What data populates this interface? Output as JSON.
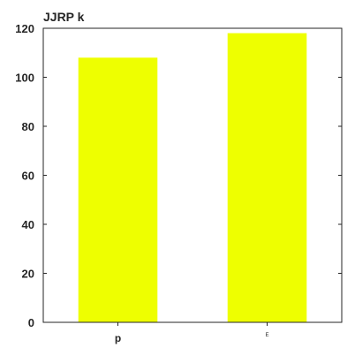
{
  "chart_data": {
    "type": "bar",
    "title": "JJRP k",
    "xlabel": "",
    "ylabel": "",
    "categories": [
      "p",
      "Ε"
    ],
    "values": [
      108,
      118
    ],
    "ylim": [
      0,
      120
    ],
    "yticks": [
      "0",
      "20",
      "40",
      "60",
      "80",
      "100",
      "120"
    ],
    "grid": false,
    "legend": "none",
    "bar_color": "#eeff00",
    "axis_color": "#262626"
  }
}
